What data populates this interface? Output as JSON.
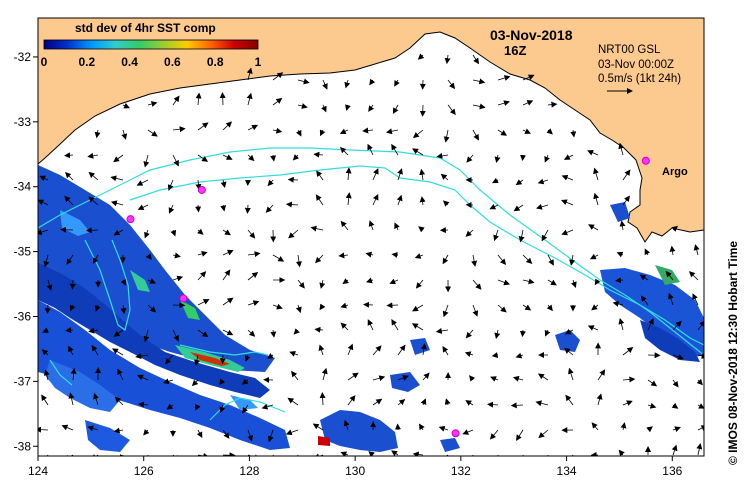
{
  "legend": {
    "title": "std dev of 4hr SST comp",
    "ticks": [
      "0",
      "0.2",
      "0.4",
      "0.6",
      "0.8",
      "1"
    ],
    "colors": [
      "#000080",
      "#0033cc",
      "#0099ff",
      "#33cccc",
      "#33cc66",
      "#99cc33",
      "#ffcc00",
      "#ff6600",
      "#cc0000",
      "#800000"
    ]
  },
  "header": {
    "date": "03-Nov-2018",
    "time": "16Z"
  },
  "current_info": {
    "line1": "NRT00 GSL",
    "line2": "03-Nov 00:00Z",
    "line3": "0.5m/s (1kt 24h)"
  },
  "credit": "© IMOS 08-Nov-2018 12:30 Hobart Time",
  "argo_label": "Argo",
  "axes": {
    "x_ticks": [
      124,
      126,
      128,
      130,
      132,
      134,
      136
    ],
    "y_ticks": [
      -32,
      -33,
      -34,
      -35,
      -36,
      -37,
      -38
    ],
    "x_range": [
      124,
      136.6
    ],
    "y_range": [
      -38.15,
      -31.4
    ]
  },
  "argo_floats": [
    {
      "lon": 127.1,
      "lat": -34.05
    },
    {
      "lon": 125.75,
      "lat": -34.5
    },
    {
      "lon": 126.75,
      "lat": -35.72
    },
    {
      "lon": 131.9,
      "lat": -37.8
    },
    {
      "lon": 135.5,
      "lat": -33.6
    }
  ],
  "colors": {
    "land": "#fcc98f",
    "ocean": "#ffffff",
    "contour": "#33dddd",
    "argo": "#ff33ff"
  }
}
